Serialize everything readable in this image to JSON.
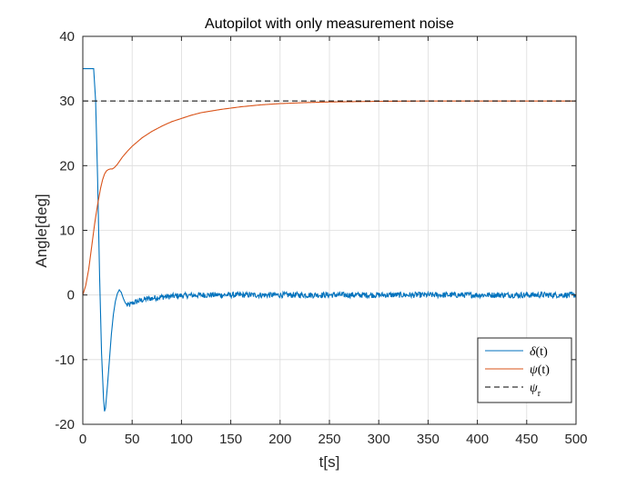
{
  "chart_data": {
    "type": "line",
    "title": "Autopilot with only measurement noise",
    "xlabel": "t[s]",
    "ylabel": "Angle[deg]",
    "xlim": [
      0,
      500
    ],
    "ylim": [
      -20,
      40
    ],
    "xticks": [
      "0",
      "50",
      "100",
      "150",
      "200",
      "250",
      "300",
      "350",
      "400",
      "450",
      "500"
    ],
    "yticks": [
      "-20",
      "-10",
      "0",
      "10",
      "20",
      "30",
      "40"
    ],
    "grid": true,
    "legend_position": "bottom-right",
    "series": [
      {
        "name": "δ(t)",
        "label_symbol": "δ",
        "label_rest": "(t)",
        "color": "#0072BD",
        "style": "solid",
        "noise_amplitude": 0.45,
        "x": [
          0,
          11,
          13,
          15,
          17,
          19,
          21,
          22,
          23,
          25,
          27,
          29,
          31,
          33,
          35,
          37,
          39,
          41,
          43,
          45,
          48,
          51,
          55,
          60,
          65,
          70,
          80,
          90,
          100,
          120,
          150,
          200,
          250,
          300,
          350,
          400,
          450,
          500
        ],
        "y": [
          35,
          35,
          30,
          18,
          3,
          -9,
          -16,
          -18,
          -17.5,
          -14,
          -10,
          -6,
          -3,
          -1,
          0.2,
          0.8,
          0.4,
          -0.5,
          -1.2,
          -1.6,
          -1.5,
          -1.2,
          -1.0,
          -0.8,
          -0.6,
          -0.5,
          -0.3,
          -0.2,
          -0.1,
          0,
          0,
          0,
          0,
          0,
          0,
          0,
          0,
          0
        ]
      },
      {
        "name": "ψ(t)",
        "label_symbol": "ψ",
        "label_rest": "(t)",
        "color": "#D95319",
        "style": "solid",
        "x": [
          0,
          3,
          6,
          9,
          12,
          15,
          18,
          20,
          22,
          24,
          26,
          28,
          30,
          32,
          35,
          40,
          45,
          50,
          60,
          70,
          80,
          90,
          100,
          110,
          120,
          140,
          160,
          180,
          200,
          225,
          250,
          275,
          300,
          350,
          400,
          450,
          500
        ],
        "y": [
          0,
          1.5,
          4,
          7.5,
          11,
          14,
          16.5,
          17.8,
          18.7,
          19.2,
          19.4,
          19.5,
          19.5,
          19.7,
          20.2,
          21.3,
          22.2,
          23.0,
          24.3,
          25.3,
          26.1,
          26.8,
          27.3,
          27.8,
          28.2,
          28.7,
          29.1,
          29.4,
          29.6,
          29.75,
          29.85,
          29.9,
          29.95,
          30,
          30,
          30,
          30
        ]
      },
      {
        "name": "ψ_r",
        "label_symbol": "ψ",
        "label_sub": "r",
        "color": "#000000",
        "style": "dashed",
        "x": [
          0,
          500
        ],
        "y": [
          30,
          30
        ]
      }
    ]
  }
}
